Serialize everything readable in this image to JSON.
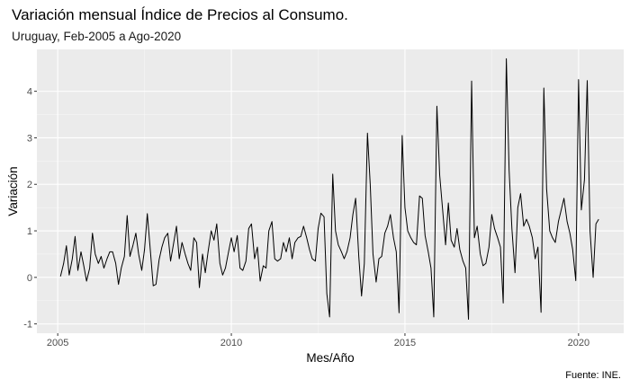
{
  "chart_data": {
    "type": "line",
    "title": "Variación mensual Índice de Precios al Consumo.",
    "subtitle": "Uruguay, Feb-2005 a Ago-2020",
    "xlabel": "Mes/Año",
    "ylabel": "Variación",
    "caption": "Fuente: INE.",
    "xlim": [
      2004.4,
      2021.3
    ],
    "ylim": [
      -1.2,
      4.9
    ],
    "x_ticks": [
      2005,
      2010,
      2015,
      2020
    ],
    "y_ticks": [
      -1,
      0,
      1,
      2,
      3,
      4
    ],
    "grid": true,
    "series": [
      {
        "x": [
          2005.08,
          2005.17,
          2005.25,
          2005.33,
          2005.42,
          2005.5,
          2005.58,
          2005.67,
          2005.75,
          2005.83,
          2005.92,
          2006.0,
          2006.08,
          2006.17,
          2006.25,
          2006.33,
          2006.42,
          2006.5,
          2006.58,
          2006.67,
          2006.75,
          2006.83,
          2006.92,
          2007.0,
          2007.08,
          2007.17,
          2007.25,
          2007.33,
          2007.42,
          2007.5,
          2007.58,
          2007.67,
          2007.75,
          2007.83,
          2007.92,
          2008.0,
          2008.08,
          2008.17,
          2008.25,
          2008.33,
          2008.42,
          2008.5,
          2008.58,
          2008.67,
          2008.75,
          2008.83,
          2008.92,
          2009.0,
          2009.08,
          2009.17,
          2009.25,
          2009.33,
          2009.42,
          2009.5,
          2009.58,
          2009.67,
          2009.75,
          2009.83,
          2009.92,
          2010.0,
          2010.08,
          2010.17,
          2010.25,
          2010.33,
          2010.42,
          2010.5,
          2010.58,
          2010.67,
          2010.75,
          2010.83,
          2010.92,
          2011.0,
          2011.08,
          2011.17,
          2011.25,
          2011.33,
          2011.42,
          2011.5,
          2011.58,
          2011.67,
          2011.75,
          2011.83,
          2011.92,
          2012.0,
          2012.08,
          2012.17,
          2012.25,
          2012.33,
          2012.42,
          2012.5,
          2012.58,
          2012.67,
          2012.75,
          2012.83,
          2012.92,
          2013.0,
          2013.08,
          2013.17,
          2013.25,
          2013.33,
          2013.42,
          2013.5,
          2013.58,
          2013.67,
          2013.75,
          2013.83,
          2013.92,
          2014.0,
          2014.08,
          2014.17,
          2014.25,
          2014.33,
          2014.42,
          2014.5,
          2014.58,
          2014.67,
          2014.75,
          2014.83,
          2014.92,
          2015.0,
          2015.08,
          2015.17,
          2015.25,
          2015.33,
          2015.42,
          2015.5,
          2015.58,
          2015.67,
          2015.75,
          2015.83,
          2015.92,
          2016.0,
          2016.08,
          2016.17,
          2016.25,
          2016.33,
          2016.42,
          2016.5,
          2016.58,
          2016.67,
          2016.75,
          2016.83,
          2016.92,
          2017.0,
          2017.08,
          2017.17,
          2017.25,
          2017.33,
          2017.42,
          2017.5,
          2017.58,
          2017.67,
          2017.75,
          2017.83,
          2017.92,
          2018.0,
          2018.08,
          2018.17,
          2018.25,
          2018.33,
          2018.42,
          2018.5,
          2018.58,
          2018.67,
          2018.75,
          2018.83,
          2018.92,
          2019.0,
          2019.08,
          2019.17,
          2019.25,
          2019.33,
          2019.42,
          2019.5,
          2019.58,
          2019.67,
          2019.75,
          2019.83,
          2019.92,
          2020.0,
          2020.08,
          2020.17,
          2020.25,
          2020.33,
          2020.42,
          2020.5,
          2020.58
        ],
        "y": [
          0.02,
          0.3,
          0.68,
          0.05,
          0.4,
          0.88,
          0.15,
          0.55,
          0.25,
          -0.08,
          0.2,
          0.95,
          0.5,
          0.3,
          0.45,
          0.2,
          0.4,
          0.55,
          0.55,
          0.3,
          -0.15,
          0.2,
          0.45,
          1.33,
          0.45,
          0.7,
          0.95,
          0.5,
          0.15,
          0.6,
          1.37,
          0.55,
          -0.18,
          -0.15,
          0.38,
          0.65,
          0.85,
          0.95,
          0.35,
          0.7,
          1.1,
          0.4,
          0.75,
          0.5,
          0.3,
          0.15,
          0.85,
          0.75,
          -0.22,
          0.5,
          0.1,
          0.55,
          1.0,
          0.8,
          1.15,
          0.3,
          0.05,
          0.2,
          0.55,
          0.85,
          0.55,
          0.9,
          0.2,
          0.15,
          0.35,
          1.05,
          1.15,
          0.4,
          0.65,
          -0.08,
          0.25,
          0.2,
          1.0,
          1.2,
          0.4,
          0.35,
          0.4,
          0.75,
          0.55,
          0.85,
          0.4,
          0.75,
          0.85,
          0.88,
          1.1,
          0.85,
          0.6,
          0.4,
          0.35,
          1.05,
          1.38,
          1.3,
          -0.35,
          -0.85,
          2.22,
          1.0,
          0.7,
          0.55,
          0.4,
          0.55,
          0.85,
          1.35,
          1.7,
          0.45,
          -0.4,
          0.3,
          3.1,
          2.0,
          0.5,
          -0.1,
          0.4,
          0.45,
          0.95,
          1.1,
          1.35,
          0.85,
          0.55,
          -0.76,
          3.05,
          1.5,
          1.0,
          0.85,
          0.75,
          0.7,
          1.75,
          1.7,
          0.9,
          0.55,
          0.2,
          -0.85,
          3.68,
          2.2,
          1.5,
          0.7,
          1.6,
          0.8,
          0.65,
          1.05,
          0.6,
          0.35,
          0.2,
          -0.9,
          4.22,
          0.85,
          1.1,
          0.5,
          0.25,
          0.3,
          0.65,
          1.35,
          1.05,
          0.85,
          0.65,
          -0.55,
          4.7,
          2.3,
          1.05,
          0.1,
          1.5,
          1.8,
          1.1,
          1.25,
          1.1,
          0.85,
          0.4,
          0.65,
          -0.75,
          4.07,
          1.9,
          1.0,
          0.85,
          0.75,
          1.2,
          1.45,
          1.7,
          1.2,
          0.95,
          0.6,
          -0.07,
          4.25,
          1.45,
          2.1,
          4.23,
          1.0,
          0.0,
          1.15,
          1.25
        ]
      }
    ]
  }
}
